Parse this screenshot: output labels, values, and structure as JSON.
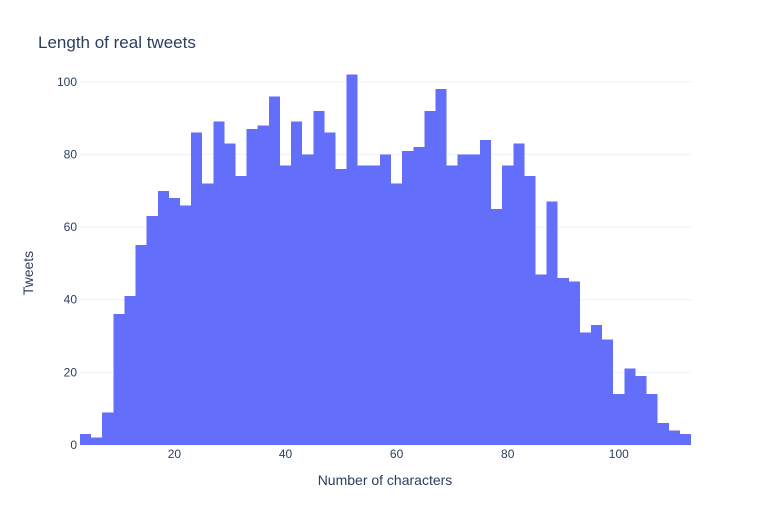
{
  "chart_data": {
    "type": "bar",
    "title": "Length of real tweets",
    "xlabel": "Number of characters",
    "ylabel": "Tweets",
    "bin_start": 3,
    "bin_width": 2,
    "xlim": [
      3,
      113
    ],
    "ylim": [
      0,
      106
    ],
    "x_ticks": [
      20,
      40,
      60,
      80,
      100
    ],
    "y_ticks": [
      0,
      20,
      40,
      60,
      80,
      100
    ],
    "values": [
      3,
      2,
      9,
      36,
      41,
      55,
      63,
      70,
      68,
      66,
      86,
      72,
      89,
      83,
      74,
      87,
      88,
      96,
      77,
      89,
      80,
      92,
      86,
      76,
      102,
      77,
      77,
      80,
      72,
      81,
      82,
      92,
      98,
      77,
      80,
      80,
      84,
      65,
      77,
      83,
      74,
      47,
      67,
      46,
      45,
      31,
      33,
      29,
      14,
      21,
      19,
      14,
      6,
      4,
      3
    ],
    "bar_color": "#636efa",
    "grid_color": "#ebf0f8",
    "grid": true
  }
}
